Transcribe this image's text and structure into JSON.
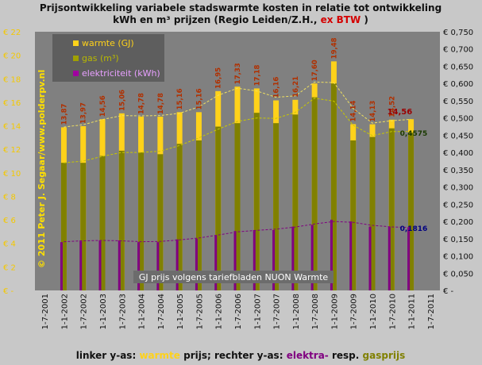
{
  "title": {
    "line1": "Prijsontwikkeling variabele stadswarmte kosten in relatie tot ontwikkeling",
    "line2_prefix": "kWh en m³ prijzen (Regio Leiden/Z.H.,",
    "line2_red": "ex BTW",
    "line2_suffix": ")"
  },
  "footer": {
    "part1": "linker y-as:",
    "part2": "warmte",
    "part3": "prijs; rechter y-as:",
    "part4": "elektra-",
    "part5": "resp.",
    "part6": "gasprijs"
  },
  "watermark": "© 2011 Peter J. Segaar/www.polderpv.nl",
  "source_note": "GJ prijs volgens tariefbladen NUON Warmte",
  "legend": [
    "warmte (GJ)",
    "gas (m³)",
    "elektriciteit (kWh)"
  ],
  "colors": {
    "background": "#c8c8c8",
    "plot": "#808080",
    "legend_bg": "#5e5e5e",
    "warmte": "#ffd21a",
    "gas": "#808000",
    "elektriciteit": "#800080",
    "label_red": "#b03000",
    "label_green": "#1a3a00",
    "label_blue": "#000080",
    "title_red": "#d40000"
  },
  "chart_data": {
    "type": "bar",
    "x_tick_labels": [
      "1-7-2001",
      "1-1-2002",
      "1-7-2002",
      "1-1-2003",
      "1-7-2003",
      "1-1-2004",
      "1-7-2004",
      "1-1-2005",
      "1-7-2005",
      "1-1-2006",
      "1-7-2006",
      "1-1-2007",
      "1-7-2007",
      "1-1-2008",
      "1-7-2008",
      "1-1-2009",
      "1-7-2009",
      "1-1-2010",
      "1-7-2010",
      "1-1-2011",
      "1-7-2011"
    ],
    "categories": [
      "1-1-2002",
      "1-7-2002",
      "1-1-2003",
      "1-7-2003",
      "1-1-2004",
      "1-7-2004",
      "1-1-2005",
      "1-7-2005",
      "1-1-2006",
      "1-7-2006",
      "1-1-2007",
      "1-7-2007",
      "1-1-2008",
      "1-7-2008",
      "1-1-2009",
      "1-7-2009",
      "1-1-2010",
      "1-7-2010",
      "1-1-2011"
    ],
    "y_left": {
      "label": "",
      "unit": "€",
      "min": 0,
      "max": 22,
      "step": 2,
      "tick_labels": [
        "€ -",
        "€ 2",
        "€ 4",
        "€ 6",
        "€ 8",
        "€ 10",
        "€ 12",
        "€ 14",
        "€ 16",
        "€ 18",
        "€ 20",
        "€ 22"
      ]
    },
    "y_right": {
      "label": "",
      "unit": "€",
      "min": 0,
      "max": 0.75,
      "step": 0.05,
      "tick_labels": [
        "€ -",
        "€ 0,050",
        "€ 0,100",
        "€ 0,150",
        "€ 0,200",
        "€ 0,250",
        "€ 0,300",
        "€ 0,350",
        "€ 0,400",
        "€ 0,450",
        "€ 0,500",
        "€ 0,550",
        "€ 0,600",
        "€ 0,650",
        "€ 0,700",
        "€ 0,750"
      ]
    },
    "series": [
      {
        "name": "warmte (GJ)",
        "axis": "left",
        "values": [
          13.87,
          13.97,
          14.56,
          15.06,
          14.78,
          14.78,
          15.16,
          15.16,
          16.95,
          17.33,
          17.18,
          16.16,
          16.21,
          17.6,
          19.48,
          14.14,
          14.13,
          14.52,
          14.56
        ],
        "labels": [
          "13,87",
          "13,97",
          "14,56",
          "15,06",
          "14,78",
          "14,78",
          "15,16",
          "15,16",
          "16,95",
          "17,33",
          "17,18",
          "16,16",
          "16,21",
          "17,60",
          "19,48",
          "14,14",
          "14,13",
          "14,52",
          "14,56"
        ]
      },
      {
        "name": "gas (m³)",
        "axis": "right",
        "values": [
          0.37,
          0.37,
          0.39,
          0.405,
          0.4,
          0.395,
          0.425,
          0.435,
          0.475,
          0.485,
          0.515,
          0.485,
          0.51,
          0.56,
          0.6,
          0.435,
          0.445,
          0.47,
          0.4575
        ]
      },
      {
        "name": "elektriciteit (kWh)",
        "axis": "right",
        "values": [
          0.14,
          0.145,
          0.145,
          0.145,
          0.14,
          0.14,
          0.148,
          0.15,
          0.16,
          0.172,
          0.175,
          0.175,
          0.185,
          0.19,
          0.205,
          0.2,
          0.185,
          0.185,
          0.1816
        ]
      }
    ],
    "callouts": [
      {
        "text": "14,56",
        "series": "warmte (GJ)",
        "value": 14.56
      },
      {
        "text": "0,4575",
        "series": "gas (m³)",
        "value": 0.4575
      },
      {
        "text": "0,1816",
        "series": "elektriciteit (kWh)",
        "value": 0.1816
      }
    ],
    "trendlines": "dashed moving-average lines for each series",
    "grid": false,
    "legend_position": "top-left"
  }
}
